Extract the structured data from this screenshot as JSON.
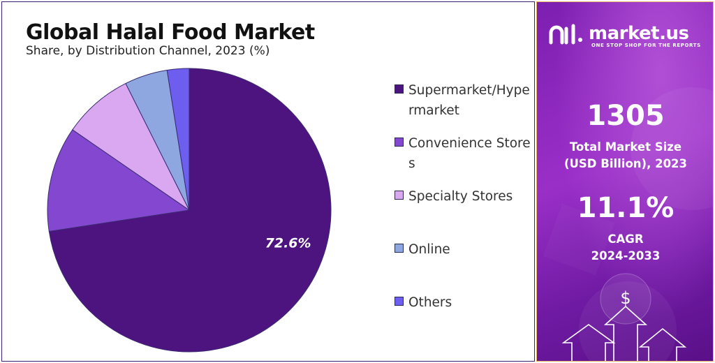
{
  "chart_data": {
    "type": "pie",
    "title": "Global Halal Food Market",
    "subtitle": "Share, by Distribution Channel, 2023 (%)",
    "slices": [
      {
        "label": "Supermarket/Hypermarket",
        "value": 72.6,
        "color": "#4d1480",
        "data_label": "72.6%"
      },
      {
        "label": "Convenience Stores",
        "value": 12.0,
        "color": "#8448d0",
        "data_label": ""
      },
      {
        "label": "Specialty Stores",
        "value": 8.0,
        "color": "#d9a8f0",
        "data_label": ""
      },
      {
        "label": "Online",
        "value": 4.9,
        "color": "#8ea7e0",
        "data_label": ""
      },
      {
        "label": "Others",
        "value": 2.5,
        "color": "#6e5ef0",
        "data_label": ""
      }
    ],
    "legend_position": "right"
  },
  "panel": {
    "brand": "market.us",
    "tagline": "ONE STOP SHOP FOR THE REPORTS",
    "market_size_value": "1305",
    "market_size_label": "Total Market Size\n(USD Billion), 2023",
    "cagr_value": "11.1%",
    "cagr_label": "CAGR\n2024-2033",
    "currency_symbol": "$"
  }
}
